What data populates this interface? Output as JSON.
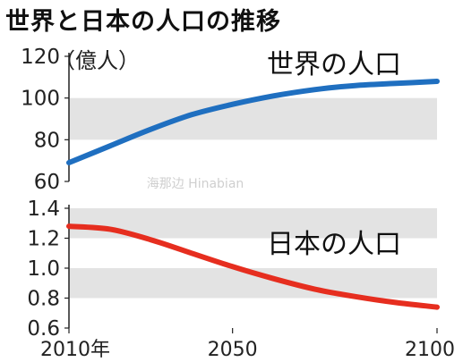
{
  "title": "世界と日本の人口の推移",
  "chart_data": [
    {
      "type": "line",
      "series_label": "世界の人口",
      "unit_label": "（億人）",
      "yticks": [
        60,
        80,
        100,
        120
      ],
      "ylim": [
        60,
        120
      ],
      "xlim": [
        2010,
        2100
      ],
      "x": [
        2010,
        2020,
        2030,
        2040,
        2050,
        2060,
        2070,
        2080,
        2090,
        2100
      ],
      "values": [
        69,
        77,
        85,
        92,
        97,
        101,
        104,
        106,
        107,
        108
      ],
      "color": "#1f6fc0"
    },
    {
      "type": "line",
      "series_label": "日本の人口",
      "yticks": [
        "0.6",
        "0.8",
        "1.0",
        "1.2",
        "1.4"
      ],
      "ylim": [
        0.6,
        1.4
      ],
      "xlim": [
        2010,
        2100
      ],
      "x": [
        2010,
        2020,
        2030,
        2040,
        2050,
        2060,
        2070,
        2080,
        2090,
        2100
      ],
      "values": [
        1.28,
        1.26,
        1.19,
        1.1,
        1.01,
        0.93,
        0.86,
        0.81,
        0.77,
        0.74
      ],
      "color": "#e62e1f"
    }
  ],
  "xticks": [
    "2010年",
    "2050",
    "2100"
  ],
  "watermark": "海那边 Hinabian"
}
